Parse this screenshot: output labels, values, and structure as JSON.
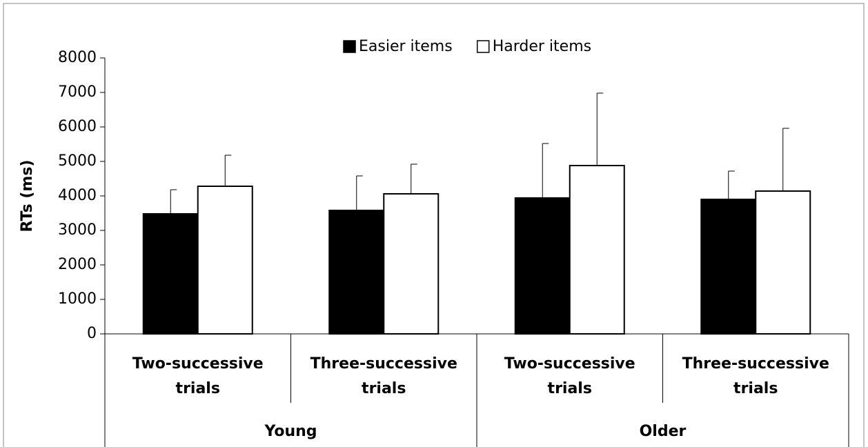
{
  "chart_data": {
    "type": "bar",
    "ylabel": "RTs (ms)",
    "categories": [
      "Two-successive trials",
      "Three-successive trials",
      "Two-successive trials",
      "Three-successive trials"
    ],
    "groups": [
      "Young",
      "Older"
    ],
    "series": [
      {
        "name": "Easier items",
        "color": "#000000",
        "values": [
          3480,
          3580,
          3940,
          3900
        ],
        "errors": [
          700,
          1000,
          1580,
          820
        ]
      },
      {
        "name": "Harder items",
        "color": "#ffffff",
        "values": [
          4280,
          4060,
          4880,
          4140
        ],
        "errors": [
          900,
          860,
          2100,
          1820
        ]
      }
    ],
    "ylim": [
      0,
      8000
    ],
    "yticks": [
      0,
      1000,
      2000,
      3000,
      4000,
      5000,
      6000,
      7000,
      8000
    ],
    "legend": "top",
    "grid": false
  }
}
